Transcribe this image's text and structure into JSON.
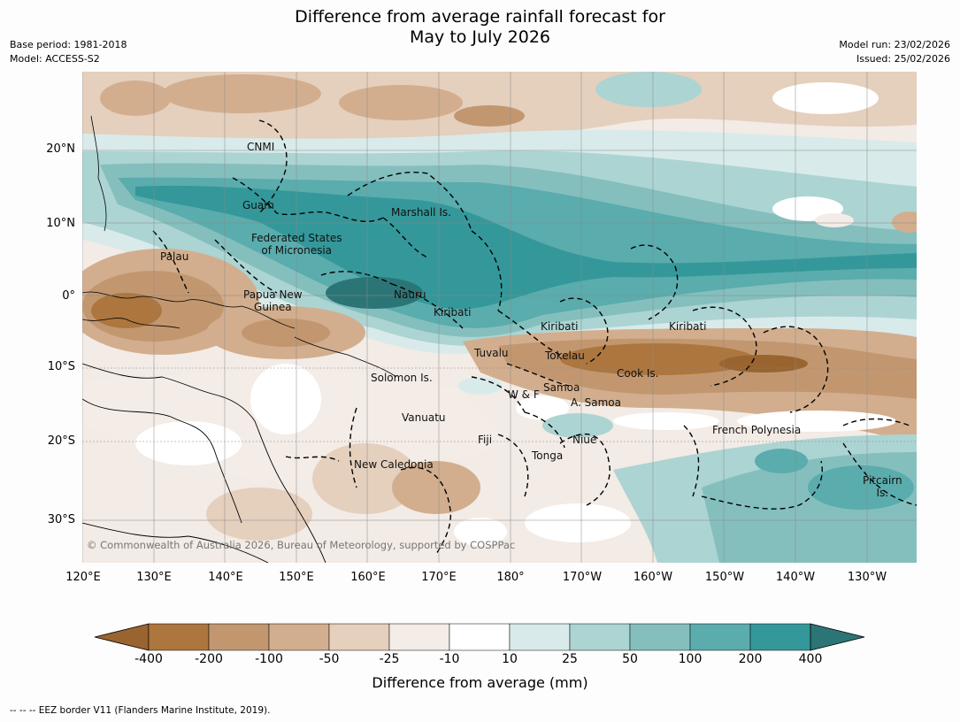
{
  "header": {
    "title_line1": "Difference from average rainfall forecast for",
    "title_line2": "May to July 2026",
    "base_period": "Base period: 1981-2018",
    "model": "Model: ACCESS-S2",
    "model_run": "Model run: 23/02/2026",
    "issued": "Issued: 25/02/2026"
  },
  "map": {
    "lat_labels": [
      "20°N",
      "10°N",
      "0°",
      "10°S",
      "20°S",
      "30°S"
    ],
    "lon_labels": [
      "120°E",
      "130°E",
      "140°E",
      "150°E",
      "160°E",
      "170°E",
      "180°",
      "170°W",
      "160°W",
      "150°W",
      "140°W",
      "130°W"
    ],
    "regions": {
      "cnmi": "CNMI",
      "guam": "Guam",
      "marshall": "Marshall Is.",
      "fsm_line1": "Federated States",
      "fsm_line2": "of Micronesia",
      "palau": "Palau",
      "png_line1": "Papua New",
      "png_line2": "Guinea",
      "nauru": "Nauru",
      "kiribati_west": "Kiribati",
      "kiribati_central": "Kiribati",
      "kiribati_east": "Kiribati",
      "tuvalu": "Tuvalu",
      "tokelau": "Tokelau",
      "cook": "Cook Is.",
      "solomon": "Solomon Is.",
      "wallis": "W & F",
      "samoa": "Samoa",
      "am_samoa": "A. Samoa",
      "vanuatu": "Vanuatu",
      "fiji": "Fiji",
      "niue": "Niue",
      "tonga": "Tonga",
      "french_polynesia": "French Polynesia",
      "new_caledonia": "New Caledonia",
      "pitcairn_line1": "Pitcairn",
      "pitcairn_line2": "Is."
    },
    "copyright": "© Commonwealth of Australia 2026, Bureau of Meteorology, supported by COSPPac"
  },
  "colorbar": {
    "ticks": [
      "-400",
      "-200",
      "-100",
      "-50",
      "-25",
      "-10",
      "10",
      "25",
      "50",
      "100",
      "200",
      "400"
    ],
    "colors": [
      "#99642f",
      "#ad763e",
      "#c29770",
      "#d2ae8e",
      "#e5cfbd",
      "#f4ece6",
      "#ffffff",
      "#d8ebea",
      "#acd4d3",
      "#84bfbe",
      "#5aacad",
      "#34989a",
      "#2c7576"
    ],
    "title": "Difference from average (mm)"
  },
  "footer": {
    "legend_text": "--  --  -- EEZ border V11 (Flanders Marine Institute, 2019)."
  }
}
